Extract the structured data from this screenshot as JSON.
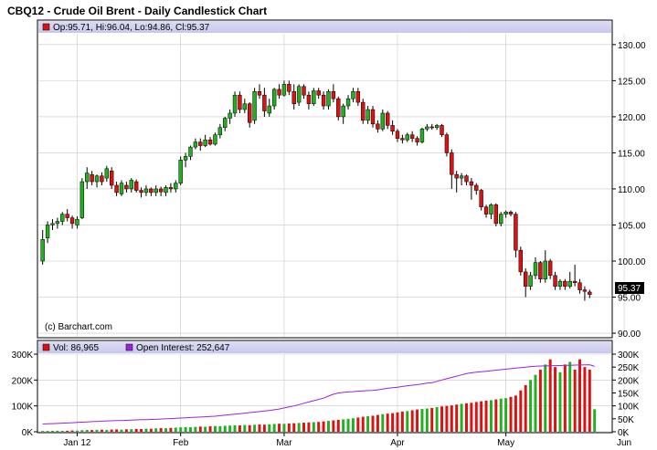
{
  "chart_data": [
    {
      "type": "candlestick",
      "title": "CBQ12 - Crude Oil Brent - Daily Candlestick Chart",
      "legend_text": "Op:95.71, Hi:96.04, Lo:94.86, Cl:95.37",
      "watermark": "(c) Barchart.com",
      "last_price_label": "95.37",
      "ylim": [
        89.5,
        131.5
      ],
      "y_ticks": [
        90,
        95,
        100,
        105,
        110,
        115,
        120,
        125,
        130
      ],
      "y_tick_labels": [
        "90.00",
        "95.00",
        "100.00",
        "105.00",
        "110.00",
        "115.00",
        "120.00",
        "125.00",
        "130.00"
      ],
      "x_tick_labels": [
        "Jan 12",
        "Feb",
        "Mar",
        "Apr",
        "May",
        "Jun"
      ],
      "x_tick_index": [
        7,
        28,
        49,
        72,
        94,
        118
      ],
      "grid": true,
      "up_color": "#20b020",
      "down_color": "#dd1111",
      "candles": [
        [
          100.0,
          104.3,
          99.5,
          103.0
        ],
        [
          103.2,
          105.5,
          102.5,
          105.0
        ],
        [
          105.0,
          105.8,
          104.3,
          105.2
        ],
        [
          105.2,
          106.0,
          104.5,
          105.5
        ],
        [
          105.5,
          106.8,
          105.0,
          106.5
        ],
        [
          106.5,
          107.2,
          105.5,
          106.0
        ],
        [
          106.0,
          106.3,
          104.5,
          105.2
        ],
        [
          105.0,
          106.2,
          104.5,
          105.8
        ],
        [
          106.0,
          111.5,
          105.8,
          111.0
        ],
        [
          111.0,
          113.0,
          110.0,
          112.2
        ],
        [
          112.0,
          112.5,
          110.5,
          111.0
        ],
        [
          111.0,
          112.0,
          110.2,
          111.8
        ],
        [
          111.8,
          112.3,
          110.5,
          111.0
        ],
        [
          111.5,
          113.2,
          111.0,
          112.8
        ],
        [
          112.5,
          113.0,
          110.0,
          110.5
        ],
        [
          110.5,
          111.0,
          109.0,
          109.5
        ],
        [
          109.3,
          111.2,
          109.0,
          110.8
        ],
        [
          110.5,
          111.0,
          109.5,
          110.0
        ],
        [
          110.0,
          111.5,
          109.5,
          111.2
        ],
        [
          111.0,
          111.3,
          109.5,
          109.8
        ],
        [
          109.8,
          110.2,
          108.8,
          109.5
        ],
        [
          109.5,
          110.5,
          109.0,
          110.0
        ],
        [
          110.0,
          110.2,
          109.0,
          109.5
        ],
        [
          109.5,
          110.5,
          109.0,
          110.0
        ],
        [
          110.0,
          110.3,
          109.0,
          109.6
        ],
        [
          109.5,
          110.5,
          109.0,
          110.2
        ],
        [
          110.2,
          110.8,
          109.5,
          110.0
        ],
        [
          110.0,
          111.2,
          109.5,
          110.8
        ],
        [
          110.8,
          114.5,
          110.5,
          114.0
        ],
        [
          114.0,
          115.0,
          113.0,
          114.5
        ],
        [
          114.5,
          116.0,
          114.0,
          115.8
        ],
        [
          115.8,
          117.0,
          115.5,
          116.5
        ],
        [
          116.5,
          117.0,
          115.3,
          116.0
        ],
        [
          116.0,
          117.5,
          115.8,
          116.8
        ],
        [
          116.8,
          117.2,
          116.0,
          116.2
        ],
        [
          116.2,
          117.8,
          116.0,
          117.5
        ],
        [
          117.5,
          119.0,
          117.0,
          118.5
        ],
        [
          118.5,
          120.0,
          118.0,
          119.8
        ],
        [
          119.8,
          121.0,
          119.0,
          120.5
        ],
        [
          120.5,
          123.5,
          120.0,
          123.0
        ],
        [
          123.0,
          123.5,
          120.5,
          121.0
        ],
        [
          121.0,
          122.5,
          120.5,
          121.8
        ],
        [
          121.8,
          122.0,
          118.5,
          119.2
        ],
        [
          119.5,
          124.0,
          119.0,
          123.5
        ],
        [
          123.5,
          124.5,
          122.5,
          123.0
        ],
        [
          123.0,
          124.0,
          120.0,
          120.8
        ],
        [
          120.5,
          122.5,
          120.0,
          121.5
        ],
        [
          121.5,
          124.0,
          121.0,
          123.8
        ],
        [
          123.8,
          124.5,
          122.5,
          123.0
        ],
        [
          123.0,
          125.0,
          122.8,
          124.5
        ],
        [
          124.5,
          125.0,
          123.0,
          123.5
        ],
        [
          123.5,
          124.5,
          121.0,
          121.8
        ],
        [
          122.0,
          124.5,
          121.5,
          124.2
        ],
        [
          124.2,
          124.5,
          122.5,
          123.0
        ],
        [
          123.0,
          123.5,
          121.0,
          121.8
        ],
        [
          121.8,
          124.0,
          121.5,
          123.6
        ],
        [
          123.6,
          124.0,
          122.5,
          123.0
        ],
        [
          123.0,
          123.5,
          121.0,
          121.5
        ],
        [
          121.5,
          123.8,
          121.0,
          123.5
        ],
        [
          123.5,
          124.5,
          122.0,
          122.5
        ],
        [
          122.5,
          122.8,
          119.5,
          120.0
        ],
        [
          120.0,
          121.8,
          119.0,
          121.5
        ],
        [
          121.5,
          123.0,
          121.0,
          122.5
        ],
        [
          122.5,
          124.0,
          122.0,
          123.5
        ],
        [
          123.5,
          124.0,
          121.5,
          122.0
        ],
        [
          122.0,
          122.5,
          119.0,
          119.5
        ],
        [
          119.5,
          121.5,
          119.0,
          121.0
        ],
        [
          121.0,
          121.5,
          118.5,
          119.0
        ],
        [
          119.0,
          119.5,
          117.8,
          118.3
        ],
        [
          118.3,
          121.0,
          118.0,
          120.5
        ],
        [
          120.5,
          120.8,
          118.3,
          118.8
        ],
        [
          118.8,
          119.5,
          117.5,
          118.0
        ],
        [
          118.0,
          118.3,
          116.5,
          117.0
        ],
        [
          117.0,
          117.5,
          116.3,
          116.8
        ],
        [
          116.8,
          117.8,
          116.5,
          117.5
        ],
        [
          117.5,
          118.0,
          116.5,
          117.0
        ],
        [
          117.0,
          117.3,
          116.0,
          116.5
        ],
        [
          116.5,
          118.5,
          116.3,
          118.3
        ],
        [
          118.3,
          119.0,
          118.0,
          118.6
        ],
        [
          118.6,
          119.0,
          118.2,
          118.5
        ],
        [
          118.5,
          119.0,
          118.2,
          118.8
        ],
        [
          118.8,
          119.0,
          117.2,
          117.5
        ],
        [
          117.5,
          117.8,
          114.5,
          115.0
        ],
        [
          115.0,
          115.5,
          110.0,
          112.0
        ],
        [
          112.0,
          112.5,
          109.5,
          111.5
        ],
        [
          111.5,
          112.2,
          110.5,
          111.8
        ],
        [
          111.8,
          112.0,
          110.5,
          111.0
        ],
        [
          111.0,
          111.5,
          108.5,
          110.5
        ],
        [
          110.5,
          110.8,
          109.2,
          109.8
        ],
        [
          109.8,
          110.0,
          107.0,
          107.5
        ],
        [
          107.5,
          107.8,
          106.0,
          106.5
        ],
        [
          106.5,
          108.0,
          105.8,
          107.8
        ],
        [
          107.8,
          108.0,
          104.8,
          105.2
        ],
        [
          105.2,
          106.8,
          104.8,
          106.5
        ],
        [
          106.5,
          107.0,
          106.0,
          106.8
        ],
        [
          106.8,
          107.0,
          106.2,
          106.5
        ],
        [
          106.5,
          106.8,
          100.5,
          101.5
        ],
        [
          101.5,
          102.0,
          98.0,
          98.5
        ],
        [
          98.5,
          99.0,
          95.0,
          96.5
        ],
        [
          96.5,
          98.5,
          96.0,
          98.0
        ],
        [
          98.0,
          100.5,
          97.5,
          99.8
        ],
        [
          99.8,
          100.0,
          97.0,
          97.5
        ],
        [
          97.5,
          101.5,
          97.0,
          100.0
        ],
        [
          100.0,
          100.3,
          97.5,
          98.0
        ],
        [
          98.0,
          98.5,
          96.0,
          96.5
        ],
        [
          96.5,
          97.5,
          96.0,
          97.2
        ],
        [
          97.2,
          97.5,
          96.0,
          96.5
        ],
        [
          96.5,
          98.5,
          96.2,
          97.2
        ],
        [
          97.2,
          99.5,
          96.5,
          97.0
        ],
        [
          97.0,
          97.5,
          95.5,
          96.0
        ],
        [
          96.0,
          96.5,
          94.5,
          95.8
        ],
        [
          95.71,
          96.04,
          94.86,
          95.37
        ]
      ]
    },
    {
      "type": "bar",
      "legend_volume_text": "Vol: 86,965",
      "legend_oi_text": "Open Interest: 252,647",
      "ylim": [
        0,
        300000
      ],
      "y_ticks_left": [
        0,
        100000,
        200000,
        300000
      ],
      "y_tick_labels_left": [
        "0K",
        "100K",
        "200K",
        "300K"
      ],
      "y_ticks_right": [
        0,
        50000,
        100000,
        150000,
        200000,
        250000,
        300000
      ],
      "y_tick_labels_right": [
        "0K",
        "50K",
        "100K",
        "150K",
        "200K",
        "250K",
        "300K"
      ],
      "oi_color": "#a020e0",
      "volume": [
        3000,
        3000,
        3500,
        4000,
        3500,
        4000,
        5000,
        4500,
        6000,
        7000,
        6500,
        7500,
        8000,
        7000,
        8500,
        9000,
        8000,
        9500,
        10000,
        11000,
        10500,
        12000,
        11500,
        13000,
        14000,
        13500,
        15000,
        16000,
        17000,
        18000,
        17500,
        19000,
        20000,
        19500,
        21000,
        22000,
        21500,
        23000,
        24000,
        25000,
        24500,
        26000,
        25500,
        27000,
        28000,
        27500,
        29000,
        30000,
        31000,
        30500,
        32000,
        33000,
        34000,
        35000,
        36000,
        37000,
        38000,
        40000,
        42000,
        44000,
        46000,
        48000,
        50000,
        52000,
        55000,
        58000,
        60000,
        62000,
        65000,
        68000,
        70000,
        72000,
        75000,
        78000,
        80000,
        83000,
        86000,
        88000,
        90000,
        92000,
        95000,
        98000,
        100000,
        102000,
        105000,
        108000,
        110000,
        112000,
        115000,
        118000,
        120000,
        122000,
        125000,
        128000,
        130000,
        135000,
        140000,
        160000,
        180000,
        200000,
        220000,
        240000,
        260000,
        280000,
        250000,
        230000,
        260000,
        270000,
        240000,
        280000,
        250000,
        240000,
        86965
      ],
      "open_interest": [
        30000,
        31000,
        31500,
        32000,
        33000,
        34000,
        35000,
        36000,
        37000,
        38000,
        39000,
        40000,
        41000,
        42000,
        42500,
        43000,
        43500,
        44000,
        45000,
        46000,
        46500,
        47000,
        47500,
        48000,
        49000,
        50000,
        51000,
        52000,
        53000,
        54000,
        55000,
        56000,
        57000,
        58000,
        59000,
        60000,
        62000,
        64000,
        66000,
        68000,
        70000,
        72000,
        74000,
        76000,
        78000,
        80000,
        82000,
        85000,
        88000,
        92000,
        96000,
        100000,
        105000,
        110000,
        115000,
        120000,
        125000,
        130000,
        138000,
        145000,
        150000,
        152000,
        154000,
        155000,
        157000,
        158000,
        159000,
        160000,
        162000,
        165000,
        168000,
        170000,
        172000,
        175000,
        178000,
        180000,
        182000,
        185000,
        188000,
        190000,
        195000,
        200000,
        205000,
        210000,
        215000,
        220000,
        225000,
        228000,
        230000,
        232000,
        234000,
        236000,
        238000,
        240000,
        242000,
        244000,
        246000,
        248000,
        250000,
        252000,
        253000,
        254000,
        254500,
        255000,
        255500,
        256000,
        256500,
        257000,
        257500,
        258000,
        258500,
        259000,
        252647
      ]
    }
  ]
}
